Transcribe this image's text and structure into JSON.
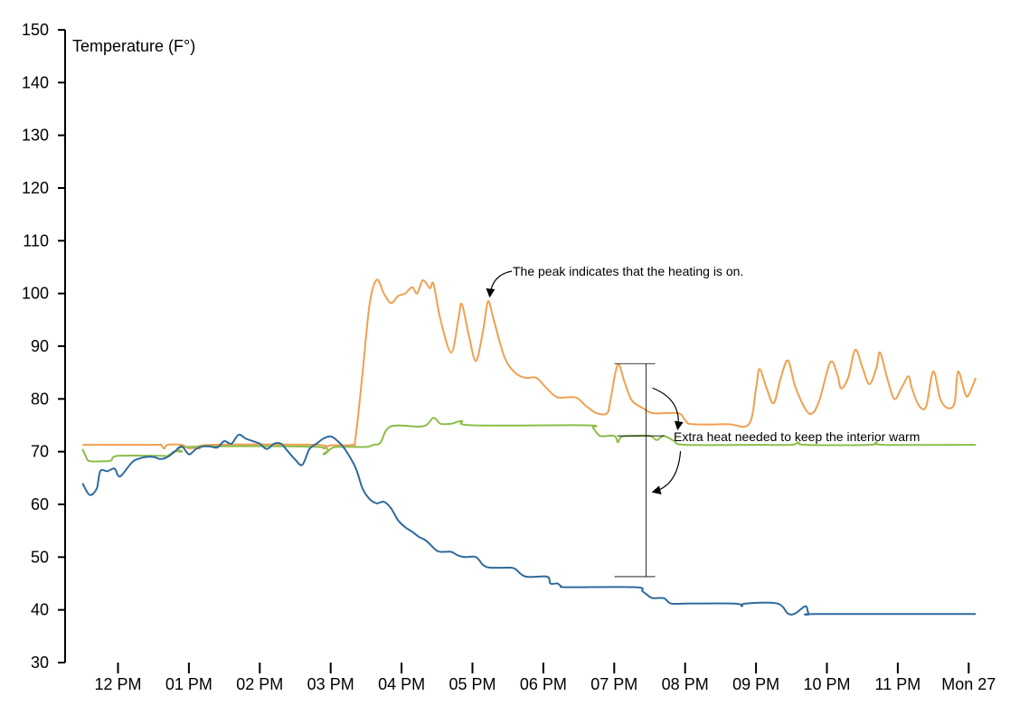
{
  "chart_data": {
    "type": "line",
    "title": "",
    "ylabel": "Temperature (F°)",
    "xlabel": "",
    "ylim": [
      30,
      150
    ],
    "yticks": [
      30,
      40,
      50,
      60,
      70,
      80,
      90,
      100,
      110,
      120,
      130,
      140,
      150
    ],
    "xlim": [
      11.5,
      24.2
    ],
    "xticks": [
      {
        "x": 12,
        "label": "12 PM"
      },
      {
        "x": 13,
        "label": "01 PM"
      },
      {
        "x": 14,
        "label": "02 PM"
      },
      {
        "x": 15,
        "label": "03 PM"
      },
      {
        "x": 16,
        "label": "04 PM"
      },
      {
        "x": 17,
        "label": "05 PM"
      },
      {
        "x": 18,
        "label": "06 PM"
      },
      {
        "x": 19,
        "label": "07 PM"
      },
      {
        "x": 20,
        "label": "08 PM"
      },
      {
        "x": 21,
        "label": "09 PM"
      },
      {
        "x": 22,
        "label": "10 PM"
      },
      {
        "x": 23,
        "label": "11 PM"
      },
      {
        "x": 24,
        "label": "Mon 27"
      }
    ],
    "grid": false,
    "series": [
      {
        "color": "#f0a050",
        "points": [
          [
            11.5,
            71.3
          ],
          [
            12.5,
            71.3
          ],
          [
            12.6,
            71.3
          ],
          [
            12.65,
            70.6
          ],
          [
            12.7,
            71.3
          ],
          [
            12.9,
            71.3
          ],
          [
            13.0,
            70.6
          ],
          [
            13.1,
            70.8
          ],
          [
            13.15,
            70.6
          ],
          [
            13.3,
            71.3
          ],
          [
            14.8,
            71.3
          ],
          [
            14.9,
            70.6
          ],
          [
            15.0,
            71.2
          ],
          [
            15.3,
            71.3
          ],
          [
            15.35,
            72.5
          ],
          [
            15.45,
            85
          ],
          [
            15.55,
            98
          ],
          [
            15.65,
            102.6
          ],
          [
            15.75,
            100
          ],
          [
            15.85,
            98.2
          ],
          [
            15.95,
            99.5
          ],
          [
            16.05,
            100
          ],
          [
            16.15,
            101.2
          ],
          [
            16.22,
            100
          ],
          [
            16.3,
            102.5
          ],
          [
            16.4,
            101
          ],
          [
            16.45,
            101.8
          ],
          [
            16.55,
            95
          ],
          [
            16.7,
            88.8
          ],
          [
            16.8,
            95
          ],
          [
            16.85,
            98
          ],
          [
            16.95,
            92
          ],
          [
            17.05,
            87.2
          ],
          [
            17.15,
            93
          ],
          [
            17.22,
            98.5
          ],
          [
            17.3,
            95
          ],
          [
            17.45,
            88
          ],
          [
            17.6,
            85
          ],
          [
            17.75,
            84
          ],
          [
            17.9,
            84
          ],
          [
            18.05,
            82
          ],
          [
            18.2,
            80.3
          ],
          [
            18.45,
            80.3
          ],
          [
            18.6,
            78.7
          ],
          [
            18.75,
            77.3
          ],
          [
            18.9,
            77.3
          ],
          [
            18.95,
            80
          ],
          [
            19.05,
            86.5
          ],
          [
            19.15,
            83
          ],
          [
            19.25,
            79.7
          ],
          [
            19.4,
            78.3
          ],
          [
            19.55,
            77.3
          ],
          [
            19.9,
            77.3
          ],
          [
            20.0,
            76
          ],
          [
            20.1,
            75.2
          ],
          [
            20.6,
            75.2
          ],
          [
            20.9,
            75.2
          ],
          [
            21.0,
            82
          ],
          [
            21.05,
            85.7
          ],
          [
            21.15,
            82
          ],
          [
            21.25,
            79.2
          ],
          [
            21.35,
            84
          ],
          [
            21.45,
            87.3
          ],
          [
            21.55,
            82.5
          ],
          [
            21.7,
            78
          ],
          [
            21.8,
            77.3
          ],
          [
            21.9,
            80
          ],
          [
            22.05,
            87
          ],
          [
            22.15,
            84.5
          ],
          [
            22.2,
            82
          ],
          [
            22.3,
            84
          ],
          [
            22.4,
            89.3
          ],
          [
            22.5,
            86
          ],
          [
            22.6,
            82.8
          ],
          [
            22.7,
            86
          ],
          [
            22.75,
            88.8
          ],
          [
            22.85,
            84
          ],
          [
            22.95,
            80
          ],
          [
            23.05,
            82
          ],
          [
            23.15,
            84.3
          ],
          [
            23.2,
            82
          ],
          [
            23.3,
            78.7
          ],
          [
            23.4,
            78.6
          ],
          [
            23.5,
            85.2
          ],
          [
            23.6,
            80
          ],
          [
            23.7,
            78.3
          ],
          [
            23.8,
            79.2
          ],
          [
            23.85,
            85.2
          ],
          [
            23.95,
            81
          ],
          [
            24.0,
            80.8
          ],
          [
            24.1,
            84
          ]
        ]
      },
      {
        "color": "#8cbd4a",
        "points": [
          [
            11.5,
            70.5
          ],
          [
            11.55,
            69
          ],
          [
            11.6,
            68.2
          ],
          [
            11.8,
            68.2
          ],
          [
            11.9,
            68.3
          ],
          [
            12.0,
            69.2
          ],
          [
            12.6,
            69.2
          ],
          [
            12.7,
            69.2
          ],
          [
            12.8,
            70.1
          ],
          [
            12.9,
            70
          ],
          [
            13.0,
            70.9
          ],
          [
            14.8,
            70.9
          ],
          [
            14.9,
            69.5
          ],
          [
            15.0,
            70.5
          ],
          [
            15.1,
            70.9
          ],
          [
            15.5,
            70.9
          ],
          [
            15.6,
            71.3
          ],
          [
            15.7,
            71.7
          ],
          [
            15.85,
            74.8
          ],
          [
            16.3,
            74.8
          ],
          [
            16.45,
            76.4
          ],
          [
            16.55,
            75.3
          ],
          [
            16.7,
            75.3
          ],
          [
            16.85,
            75.8
          ],
          [
            17.0,
            75
          ],
          [
            18.6,
            75
          ],
          [
            18.7,
            74.5
          ],
          [
            18.8,
            73
          ],
          [
            19.0,
            73
          ],
          [
            19.05,
            71.8
          ],
          [
            19.1,
            72.8
          ],
          [
            19.25,
            73
          ],
          [
            19.5,
            73
          ],
          [
            19.6,
            72.2
          ],
          [
            19.7,
            73
          ],
          [
            19.85,
            72
          ],
          [
            20.0,
            71.3
          ],
          [
            21.0,
            71.3
          ],
          [
            21.5,
            71.3
          ],
          [
            21.6,
            71.8
          ],
          [
            21.7,
            71.3
          ],
          [
            22.6,
            71.3
          ],
          [
            22.7,
            71.8
          ],
          [
            22.8,
            71.3
          ],
          [
            24.1,
            71.3
          ]
        ]
      },
      {
        "color": "#2f6a9c",
        "points": [
          [
            11.5,
            64
          ],
          [
            11.6,
            61.8
          ],
          [
            11.7,
            63
          ],
          [
            11.75,
            66.3
          ],
          [
            11.85,
            66.3
          ],
          [
            11.95,
            66.8
          ],
          [
            12.0,
            65.5
          ],
          [
            12.05,
            65.5
          ],
          [
            12.2,
            68
          ],
          [
            12.3,
            68.7
          ],
          [
            12.4,
            69
          ],
          [
            12.5,
            69
          ],
          [
            12.6,
            68.6
          ],
          [
            12.7,
            69
          ],
          [
            12.8,
            70
          ],
          [
            12.9,
            71
          ],
          [
            13.0,
            69.5
          ],
          [
            13.1,
            70.5
          ],
          [
            13.2,
            71
          ],
          [
            13.3,
            71
          ],
          [
            13.4,
            70.8
          ],
          [
            13.5,
            72
          ],
          [
            13.6,
            71.5
          ],
          [
            13.7,
            73.2
          ],
          [
            13.8,
            72.5
          ],
          [
            13.9,
            72
          ],
          [
            14.0,
            71.5
          ],
          [
            14.1,
            70.5
          ],
          [
            14.2,
            71.5
          ],
          [
            14.3,
            71.5
          ],
          [
            14.4,
            70
          ],
          [
            14.5,
            68.5
          ],
          [
            14.6,
            67.5
          ],
          [
            14.7,
            70.5
          ],
          [
            14.8,
            71.5
          ],
          [
            14.9,
            72.5
          ],
          [
            15.0,
            72.9
          ],
          [
            15.1,
            72
          ],
          [
            15.2,
            70.5
          ],
          [
            15.35,
            67
          ],
          [
            15.45,
            63
          ],
          [
            15.55,
            61
          ],
          [
            15.65,
            60.2
          ],
          [
            15.75,
            60.5
          ],
          [
            15.85,
            59.3
          ],
          [
            15.95,
            57
          ],
          [
            16.05,
            55.7
          ],
          [
            16.15,
            54.8
          ],
          [
            16.25,
            53.8
          ],
          [
            16.35,
            53.1
          ],
          [
            16.5,
            51.2
          ],
          [
            16.6,
            51
          ],
          [
            16.7,
            51
          ],
          [
            16.8,
            50.3
          ],
          [
            16.9,
            50
          ],
          [
            17.05,
            50
          ],
          [
            17.15,
            48.5
          ],
          [
            17.25,
            48
          ],
          [
            17.5,
            48
          ],
          [
            17.6,
            47.8
          ],
          [
            17.75,
            46.3
          ],
          [
            18.05,
            46.3
          ],
          [
            18.1,
            45
          ],
          [
            18.2,
            45
          ],
          [
            18.25,
            44.5
          ],
          [
            18.35,
            44.3
          ],
          [
            19.3,
            44.3
          ],
          [
            19.4,
            43.5
          ],
          [
            19.5,
            42.5
          ],
          [
            19.55,
            42.2
          ],
          [
            19.7,
            42.2
          ],
          [
            19.8,
            41.2
          ],
          [
            20.0,
            41.2
          ],
          [
            20.7,
            41.2
          ],
          [
            20.8,
            40.7
          ],
          [
            20.85,
            41.2
          ],
          [
            21.3,
            41.2
          ],
          [
            21.45,
            39.3
          ],
          [
            21.55,
            39.3
          ],
          [
            21.7,
            40.7
          ],
          [
            21.75,
            39.2
          ],
          [
            21.9,
            39.2
          ],
          [
            24.1,
            39.2
          ]
        ]
      }
    ],
    "annotations": [
      {
        "text": "The peak indicates that the heating is on.",
        "x": 17.22,
        "y": 98.5
      },
      {
        "text": "Extra heat needed to keep the interior warm",
        "range_x": 19.45,
        "range": [
          46.3,
          86.7
        ],
        "mid_y": 73
      }
    ]
  }
}
